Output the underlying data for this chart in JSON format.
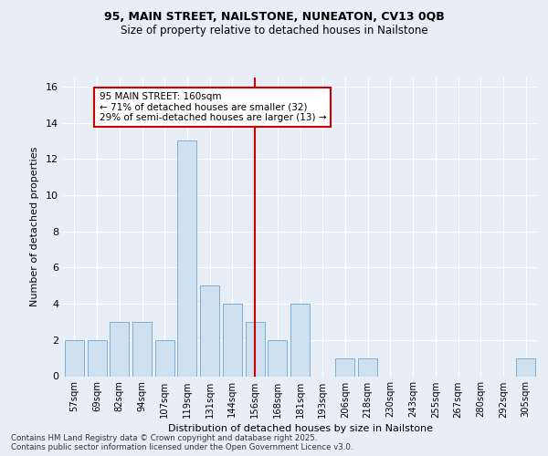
{
  "title_line1": "95, MAIN STREET, NAILSTONE, NUNEATON, CV13 0QB",
  "title_line2": "Size of property relative to detached houses in Nailstone",
  "xlabel": "Distribution of detached houses by size in Nailstone",
  "ylabel": "Number of detached properties",
  "bar_color": "#cfe0f0",
  "bar_edge_color": "#7aafd4",
  "categories": [
    "57sqm",
    "69sqm",
    "82sqm",
    "94sqm",
    "107sqm",
    "119sqm",
    "131sqm",
    "144sqm",
    "156sqm",
    "168sqm",
    "181sqm",
    "193sqm",
    "206sqm",
    "218sqm",
    "230sqm",
    "243sqm",
    "255sqm",
    "267sqm",
    "280sqm",
    "292sqm",
    "305sqm"
  ],
  "values": [
    2,
    2,
    3,
    3,
    2,
    13,
    5,
    4,
    3,
    2,
    4,
    0,
    1,
    1,
    0,
    0,
    0,
    0,
    0,
    0,
    1
  ],
  "vline_index": 8,
  "vline_color": "#cc0000",
  "annotation_text": "95 MAIN STREET: 160sqm\n← 71% of detached houses are smaller (32)\n29% of semi-detached houses are larger (13) →",
  "annotation_box_color": "#ffffff",
  "annotation_box_edge": "#cc0000",
  "ylim": [
    0,
    16.5
  ],
  "yticks": [
    0,
    2,
    4,
    6,
    8,
    10,
    12,
    14,
    16
  ],
  "footer": "Contains HM Land Registry data © Crown copyright and database right 2025.\nContains public sector information licensed under the Open Government Licence v3.0.",
  "background_color": "#e8eef5",
  "grid_color": "#ffffff"
}
